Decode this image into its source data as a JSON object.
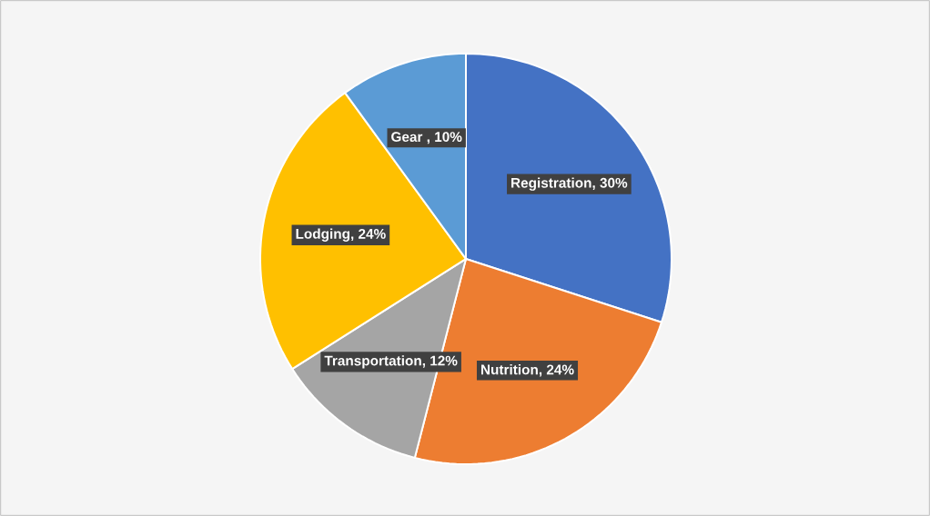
{
  "chart_data": {
    "type": "pie",
    "categories": [
      null,
      null,
      null,
      null,
      null
    ],
    "values": [
      30,
      24,
      12,
      24,
      10
    ],
    "value_labels": [
      "Registration, 30%",
      "Nutrition, 24%",
      "Transportation, 12%",
      "Lodging, 24%",
      "Gear , 10%"
    ],
    "colors": [
      "#4472c4",
      "#ed7d31",
      "#a5a5a5",
      "#ffc000",
      "#5b9bd5"
    ]
  }
}
